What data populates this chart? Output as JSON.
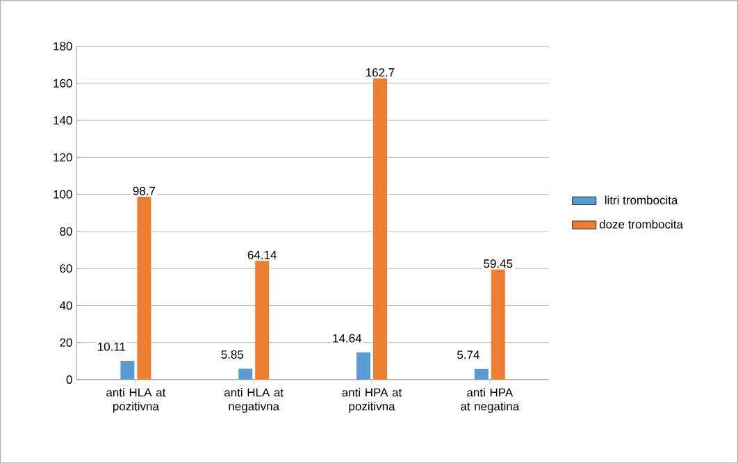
{
  "chart_data": {
    "type": "bar",
    "categories": [
      "anti HLA at pozitivna",
      "anti HLA at negativna",
      "anti HPA at pozitivna",
      "anti HPA at negatina"
    ],
    "series": [
      {
        "name": "litri trombocita",
        "color": "#5b9bd5",
        "values": [
          10.11,
          5.85,
          14.64,
          5.74
        ]
      },
      {
        "name": "doze trombocita",
        "color": "#ed7d31",
        "values": [
          98.7,
          64.14,
          162.7,
          59.45
        ]
      }
    ],
    "ylim": [
      0,
      180
    ],
    "yticks": [
      0,
      20,
      40,
      60,
      80,
      100,
      120,
      140,
      160,
      180
    ],
    "grid": "y",
    "legend": "right",
    "data_labels": true
  }
}
